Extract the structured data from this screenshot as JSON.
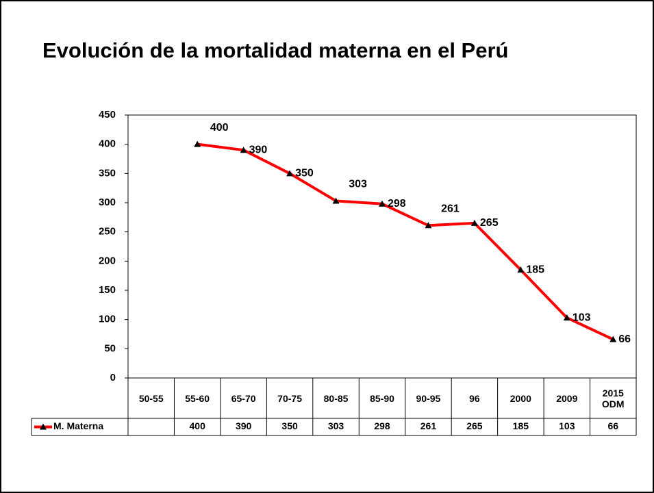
{
  "chart_data": {
    "type": "line",
    "title": "Evolución de la mortalidad materna en el Perú",
    "categories": [
      "50-55",
      "55-60",
      "65-70",
      "70-75",
      "80-85",
      "85-90",
      "90-95",
      "96",
      "2000",
      "2009",
      "2015 ODM"
    ],
    "series": [
      {
        "name": "M. Materna",
        "color": "#ff0000",
        "values": [
          null,
          400,
          390,
          350,
          303,
          298,
          261,
          265,
          185,
          103,
          66
        ]
      }
    ],
    "ylim": [
      0,
      450
    ],
    "yticks": [
      0,
      50,
      100,
      150,
      200,
      250,
      300,
      350,
      400,
      450
    ],
    "grid": false,
    "data_table": true
  }
}
